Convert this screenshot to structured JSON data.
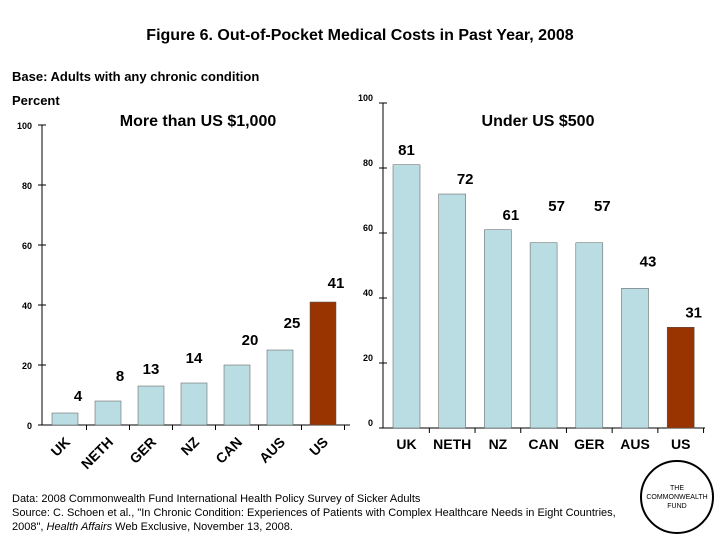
{
  "title": "Figure 6. Out-of-Pocket Medical Costs in Past Year, 2008",
  "subtitle": "Base: Adults with any chronic condition",
  "colors": {
    "bar": "#b9dde2",
    "highlight": "#993300",
    "text": "#000000"
  },
  "chart_data": [
    {
      "type": "bar",
      "title": "More than US $1,000",
      "ylabel": "Percent",
      "ylim": [
        0,
        100
      ],
      "yticks": [
        0,
        20,
        40,
        60,
        80,
        100
      ],
      "categories": [
        "UK",
        "NETH",
        "GER",
        "NZ",
        "CAN",
        "AUS",
        "US"
      ],
      "values": [
        4,
        8,
        13,
        14,
        20,
        25,
        41
      ],
      "highlight": "US",
      "grid": false
    },
    {
      "type": "bar",
      "title": "Under US $500",
      "ylim": [
        0,
        100
      ],
      "yticks": [
        0,
        20,
        40,
        60,
        80,
        100
      ],
      "categories": [
        "UK",
        "NETH",
        "NZ",
        "CAN",
        "GER",
        "AUS",
        "US"
      ],
      "values": [
        81,
        72,
        61,
        57,
        57,
        43,
        31
      ],
      "highlight": "US",
      "grid": false
    }
  ],
  "source": {
    "line1": "Data: 2008 Commonwealth Fund International Health Policy Survey of Sicker Adults",
    "line2_a": "Source: C. Schoen et al., \"In Chronic Condition: Experiences of Patients with Complex Healthcare Needs in Eight Countries, 2008\", ",
    "line2_journal": "Health Affairs",
    "line2_b": " Web Exclusive, November 13, 2008."
  },
  "logo": {
    "line1": "THE",
    "line2": "COMMONWEALTH",
    "line3": "FUND"
  }
}
